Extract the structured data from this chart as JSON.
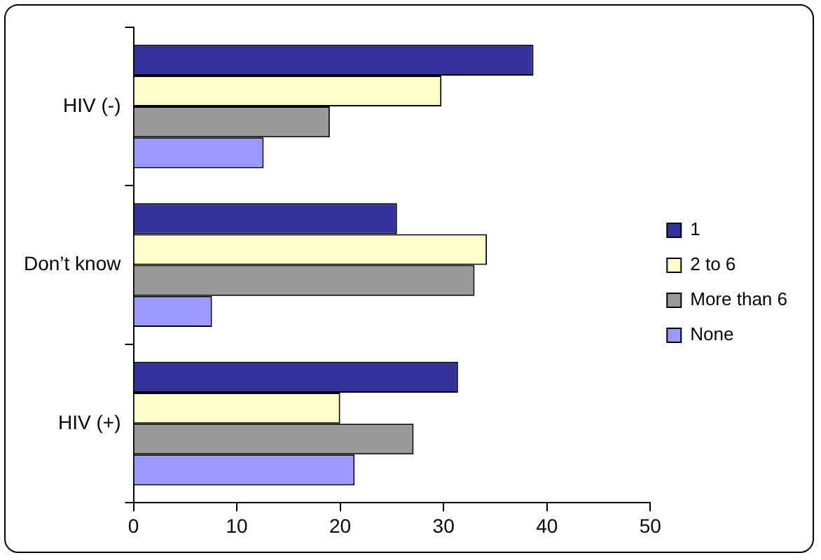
{
  "chart_data": {
    "type": "bar",
    "orientation": "horizontal",
    "categories": [
      "HIV (-)",
      "Don’t know",
      "HIV (+)"
    ],
    "series": [
      {
        "name": "1",
        "color": "#333399",
        "values": [
          38.7,
          25.5,
          31.4
        ]
      },
      {
        "name": "2 to 6",
        "color": "#ffffcc",
        "values": [
          29.8,
          34.2,
          20.0
        ]
      },
      {
        "name": "More than 6",
        "color": "#999999",
        "values": [
          19.0,
          33.0,
          27.1
        ]
      },
      {
        "name": "None",
        "color": "#9999ff",
        "values": [
          12.6,
          7.6,
          21.4
        ]
      }
    ],
    "xlim": [
      0,
      50
    ],
    "xticks": [
      0,
      10,
      20,
      30,
      40,
      50
    ],
    "grid": false,
    "legend": "right"
  }
}
